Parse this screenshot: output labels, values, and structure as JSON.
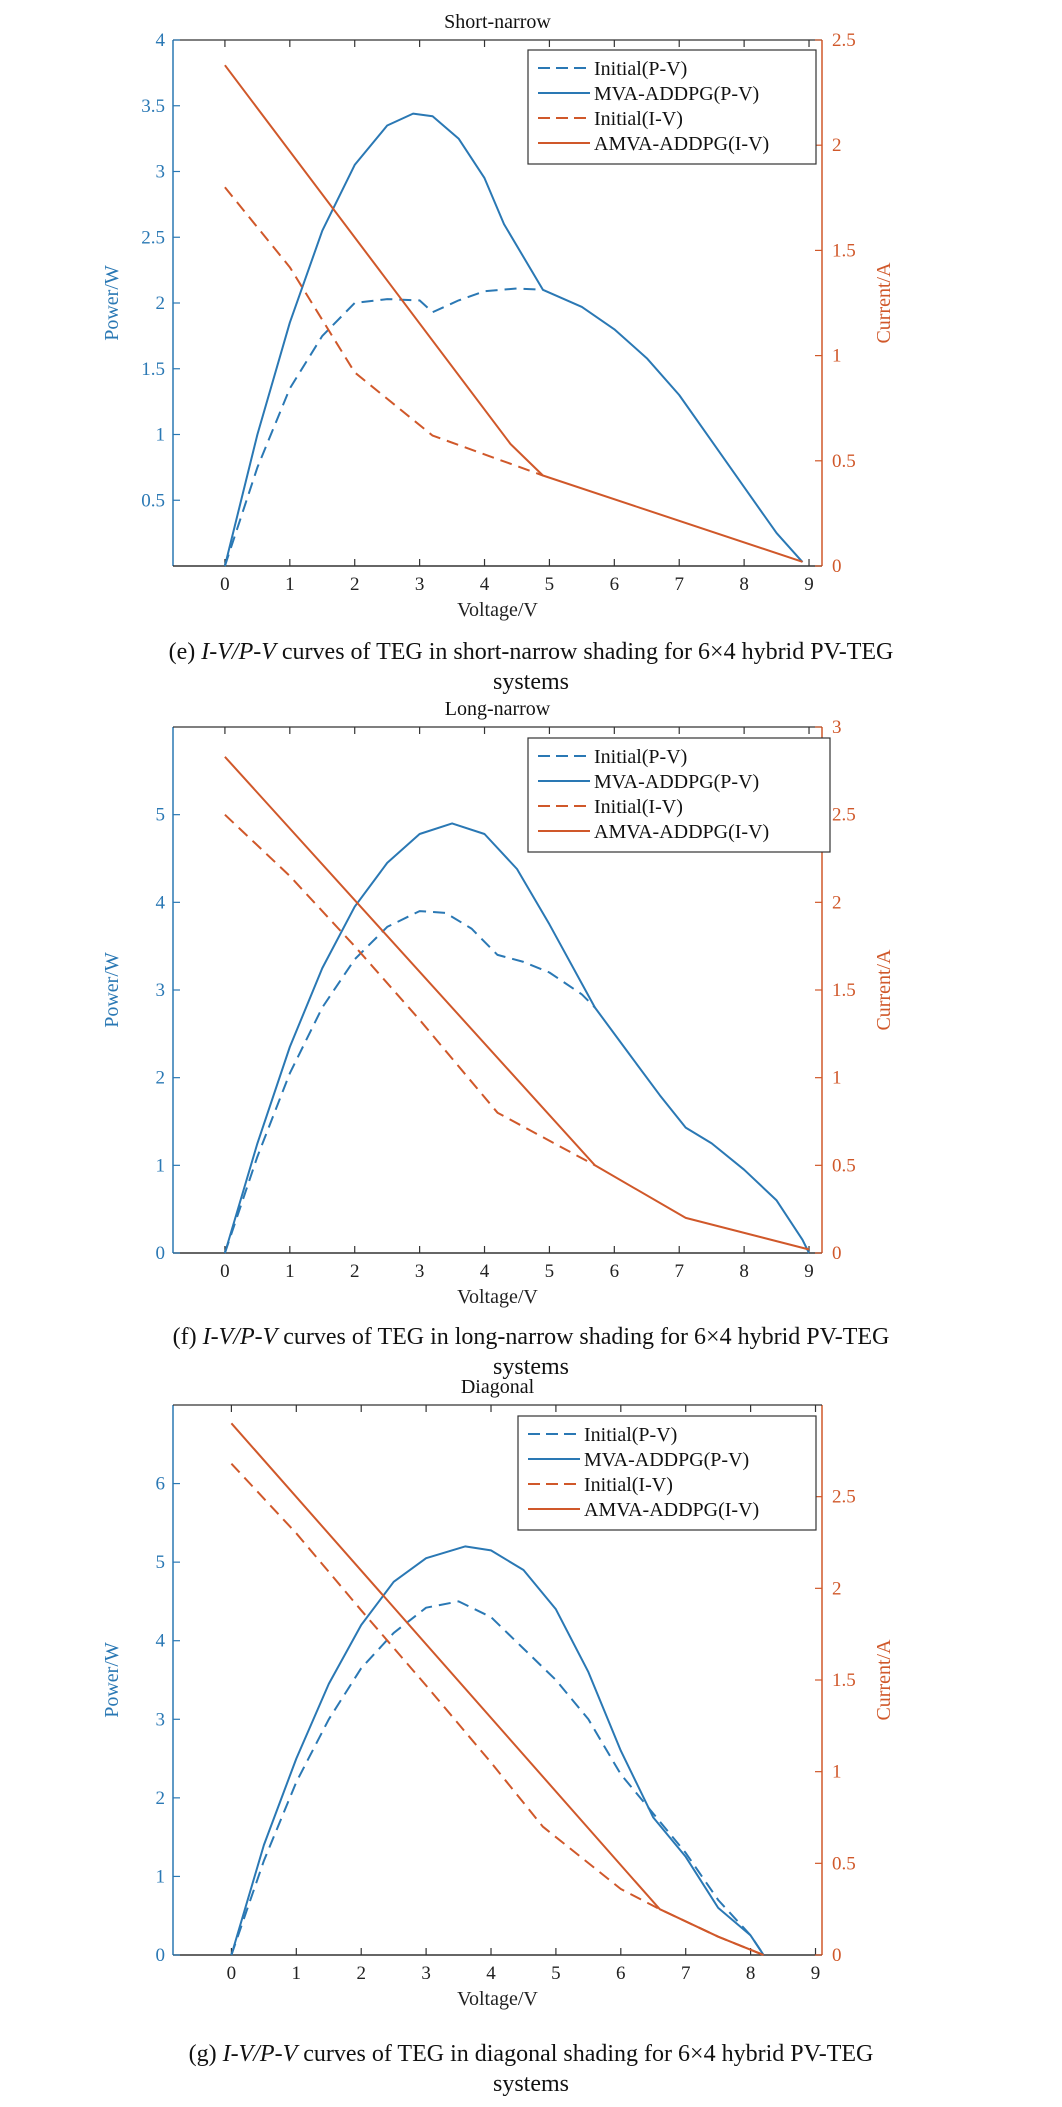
{
  "colors": {
    "blue": "#2a78b4",
    "orange": "#d0582a",
    "axis": "#333333"
  },
  "captions": [
    {
      "label": "(e) ",
      "italic": "I-V/P-V",
      "text": " curves of TEG in short-narrow shading for 6×4 hybrid PV-TEG",
      "line2": "systems"
    },
    {
      "label": "(f) ",
      "italic": "I-V/P-V",
      "text": " curves of TEG in long-narrow shading for 6×4 hybrid PV-TEG",
      "line2": "systems"
    },
    {
      "label": "(g) ",
      "italic": "I-V/P-V",
      "text": " curves of TEG in diagonal shading for 6×4 hybrid PV-TEG",
      "line2": "systems"
    }
  ],
  "chart_data": [
    {
      "type": "line",
      "title": "Short-narrow",
      "xlabel": "Voltage/V",
      "ylabel": "Power/W",
      "y2label": "Current/A",
      "xlim": [
        -0.8,
        9.2
      ],
      "ylim": [
        0,
        4
      ],
      "y2lim": [
        0,
        2.5
      ],
      "xticks": [
        0,
        1,
        2,
        3,
        4,
        5,
        6,
        7,
        8,
        9
      ],
      "yticks": [
        0.5,
        1,
        1.5,
        2,
        2.5,
        3,
        3.5,
        4
      ],
      "y2ticks": [
        0,
        0.5,
        1,
        1.5,
        2,
        2.5
      ],
      "legend_position": "top-right",
      "series": [
        {
          "name": "Initial(P-V)",
          "axis": "left",
          "style": "dashed",
          "color": "#2a78b4",
          "points": [
            [
              0,
              0
            ],
            [
              0.5,
              0.75
            ],
            [
              1,
              1.35
            ],
            [
              1.5,
              1.75
            ],
            [
              2,
              2.0
            ],
            [
              2.5,
              2.03
            ],
            [
              3,
              2.02
            ],
            [
              3.2,
              1.93
            ],
            [
              3.6,
              2.02
            ],
            [
              4,
              2.09
            ],
            [
              4.5,
              2.11
            ],
            [
              4.9,
              2.1
            ]
          ]
        },
        {
          "name": "MVA-ADDPG(P-V)",
          "axis": "left",
          "style": "solid",
          "color": "#2a78b4",
          "points": [
            [
              0,
              0
            ],
            [
              0.5,
              1.0
            ],
            [
              1,
              1.85
            ],
            [
              1.5,
              2.55
            ],
            [
              2,
              3.05
            ],
            [
              2.5,
              3.35
            ],
            [
              2.9,
              3.44
            ],
            [
              3.2,
              3.42
            ],
            [
              3.6,
              3.25
            ],
            [
              4,
              2.95
            ],
            [
              4.3,
              2.6
            ],
            [
              4.9,
              2.1
            ],
            [
              5.5,
              1.97
            ],
            [
              6,
              1.8
            ],
            [
              6.5,
              1.58
            ],
            [
              7,
              1.3
            ],
            [
              7.5,
              0.95
            ],
            [
              8,
              0.6
            ],
            [
              8.5,
              0.25
            ],
            [
              8.9,
              0.03
            ]
          ]
        },
        {
          "name": "Initial(I-V)",
          "axis": "right",
          "style": "dashed",
          "color": "#d0582a",
          "points": [
            [
              0,
              1.8
            ],
            [
              1,
              1.42
            ],
            [
              2,
              0.92
            ],
            [
              3.2,
              0.62
            ],
            [
              4.9,
              0.43
            ]
          ]
        },
        {
          "name": "AMVA-ADDPG(I-V)",
          "axis": "right",
          "style": "solid",
          "color": "#d0582a",
          "points": [
            [
              0,
              2.38
            ],
            [
              4.4,
              0.58
            ],
            [
              4.9,
              0.43
            ],
            [
              8.9,
              0.02
            ]
          ]
        }
      ]
    },
    {
      "type": "line",
      "title": "Long-narrow",
      "xlabel": "Voltage/V",
      "ylabel": "Power/W",
      "y2label": "Current/A",
      "xlim": [
        -0.8,
        9.2
      ],
      "ylim": [
        0,
        6
      ],
      "y2lim": [
        0,
        3
      ],
      "xticks": [
        0,
        1,
        2,
        3,
        4,
        5,
        6,
        7,
        8,
        9
      ],
      "yticks": [
        0,
        1,
        2,
        3,
        4,
        5
      ],
      "y2ticks": [
        0,
        0.5,
        1,
        1.5,
        2,
        2.5,
        3
      ],
      "legend_position": "top-right",
      "series": [
        {
          "name": "Initial(P-V)",
          "axis": "left",
          "style": "dashed",
          "color": "#2a78b4",
          "points": [
            [
              0,
              0
            ],
            [
              0.5,
              1.1
            ],
            [
              1,
              2.05
            ],
            [
              1.5,
              2.8
            ],
            [
              2,
              3.35
            ],
            [
              2.5,
              3.72
            ],
            [
              3,
              3.9
            ],
            [
              3.4,
              3.88
            ],
            [
              3.8,
              3.7
            ],
            [
              4.2,
              3.4
            ],
            [
              4.6,
              3.32
            ],
            [
              5,
              3.2
            ],
            [
              5.5,
              2.95
            ],
            [
              5.7,
              2.8
            ]
          ]
        },
        {
          "name": "MVA-ADDPG(P-V)",
          "axis": "left",
          "style": "solid",
          "color": "#2a78b4",
          "points": [
            [
              0,
              0
            ],
            [
              0.5,
              1.25
            ],
            [
              1,
              2.35
            ],
            [
              1.5,
              3.25
            ],
            [
              2,
              3.95
            ],
            [
              2.5,
              4.45
            ],
            [
              3,
              4.78
            ],
            [
              3.5,
              4.9
            ],
            [
              4,
              4.78
            ],
            [
              4.5,
              4.38
            ],
            [
              5,
              3.75
            ],
            [
              5.7,
              2.8
            ],
            [
              6.2,
              2.3
            ],
            [
              6.7,
              1.8
            ],
            [
              7.1,
              1.43
            ],
            [
              7.5,
              1.25
            ],
            [
              8,
              0.95
            ],
            [
              8.5,
              0.6
            ],
            [
              8.9,
              0.15
            ],
            [
              9,
              0
            ]
          ]
        },
        {
          "name": "Initial(I-V)",
          "axis": "right",
          "style": "dashed",
          "color": "#d0582a",
          "points": [
            [
              0,
              2.5
            ],
            [
              1,
              2.15
            ],
            [
              2,
              1.75
            ],
            [
              3,
              1.33
            ],
            [
              4.2,
              0.8
            ],
            [
              5.7,
              0.5
            ]
          ]
        },
        {
          "name": "AMVA-ADDPG(I-V)",
          "axis": "right",
          "style": "solid",
          "color": "#d0582a",
          "points": [
            [
              0,
              2.83
            ],
            [
              5.7,
              0.5
            ],
            [
              7.1,
              0.2
            ],
            [
              9,
              0.02
            ]
          ]
        }
      ]
    },
    {
      "type": "line",
      "title": "Diagonal",
      "xlabel": "Voltage/V",
      "ylabel": "Power/W",
      "y2label": "Current/A",
      "xlim": [
        -0.9,
        9.1
      ],
      "ylim": [
        0,
        7
      ],
      "y2lim": [
        0,
        3
      ],
      "xticks": [
        0,
        1,
        2,
        3,
        4,
        5,
        6,
        7,
        8,
        9
      ],
      "yticks": [
        0,
        1,
        2,
        3,
        4,
        5,
        6
      ],
      "y2ticks": [
        0,
        0.5,
        1,
        1.5,
        2,
        2.5
      ],
      "legend_position": "top-right",
      "series": [
        {
          "name": "Initial(P-V)",
          "axis": "left",
          "style": "dashed",
          "color": "#2a78b4",
          "points": [
            [
              0,
              0
            ],
            [
              0.5,
              1.2
            ],
            [
              1,
              2.2
            ],
            [
              1.5,
              3.0
            ],
            [
              2,
              3.65
            ],
            [
              2.5,
              4.1
            ],
            [
              3,
              4.42
            ],
            [
              3.5,
              4.5
            ],
            [
              4,
              4.3
            ],
            [
              4.5,
              3.9
            ],
            [
              5,
              3.5
            ],
            [
              5.5,
              3.0
            ],
            [
              6,
              2.3
            ],
            [
              6.5,
              1.8
            ],
            [
              7,
              1.3
            ],
            [
              7.5,
              0.7
            ],
            [
              8,
              0.25
            ],
            [
              8.2,
              0
            ]
          ]
        },
        {
          "name": "MVA-ADDPG(P-V)",
          "axis": "left",
          "style": "solid",
          "color": "#2a78b4",
          "points": [
            [
              0,
              0
            ],
            [
              0.5,
              1.4
            ],
            [
              1,
              2.5
            ],
            [
              1.5,
              3.45
            ],
            [
              2,
              4.2
            ],
            [
              2.5,
              4.75
            ],
            [
              3,
              5.05
            ],
            [
              3.6,
              5.2
            ],
            [
              4,
              5.15
            ],
            [
              4.5,
              4.9
            ],
            [
              5,
              4.4
            ],
            [
              5.5,
              3.6
            ],
            [
              6,
              2.6
            ],
            [
              6.5,
              1.75
            ],
            [
              7,
              1.25
            ],
            [
              7.5,
              0.6
            ],
            [
              8,
              0.25
            ],
            [
              8.2,
              0
            ]
          ]
        },
        {
          "name": "Initial(I-V)",
          "axis": "right",
          "style": "dashed",
          "color": "#d0582a",
          "points": [
            [
              0,
              2.68
            ],
            [
              1,
              2.3
            ],
            [
              2,
              1.88
            ],
            [
              3,
              1.47
            ],
            [
              4,
              1.05
            ],
            [
              4.8,
              0.7
            ],
            [
              6,
              0.36
            ],
            [
              6.6,
              0.25
            ],
            [
              7.5,
              0.1
            ],
            [
              8.2,
              0
            ]
          ]
        },
        {
          "name": "AMVA-ADDPG(I-V)",
          "axis": "right",
          "style": "solid",
          "color": "#d0582a",
          "points": [
            [
              0,
              2.9
            ],
            [
              6.1,
              0.45
            ],
            [
              6.6,
              0.25
            ],
            [
              7.5,
              0.1
            ],
            [
              8.2,
              0
            ]
          ]
        }
      ]
    }
  ]
}
